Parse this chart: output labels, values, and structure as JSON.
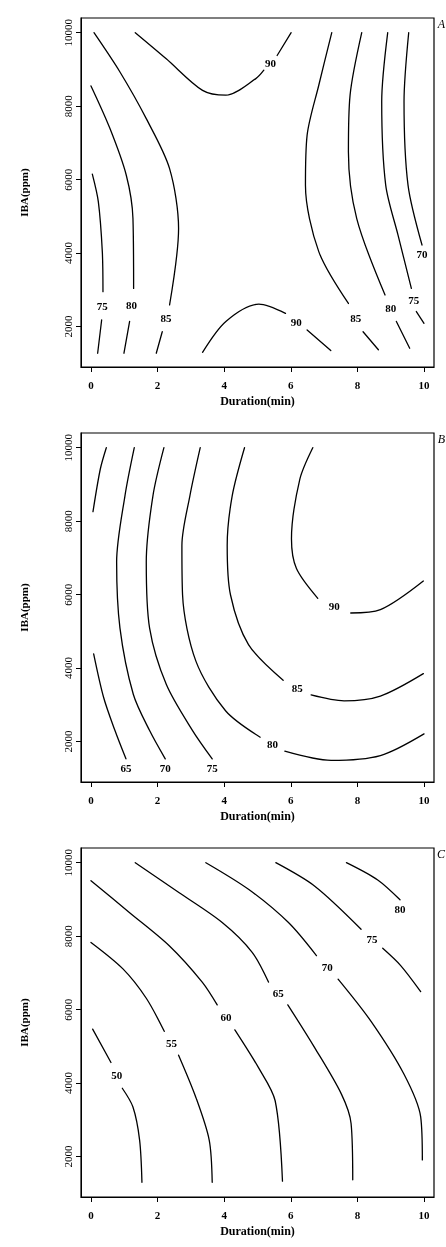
{
  "chart_data": [
    {
      "type": "line",
      "annotations": [
        "A"
      ],
      "xlabel": "Duration(min)",
      "ylabel": "IBA(ppm)",
      "xlim": [
        -0.3,
        10.3
      ],
      "ylim": [
        900,
        10400
      ],
      "xticks": [
        0,
        2,
        4,
        6,
        8,
        10
      ],
      "yticks": [
        2000,
        4000,
        6000,
        8000,
        10000
      ],
      "grid": false,
      "legend": false,
      "marker": "none",
      "line_style": "solid",
      "series": [
        {
          "name": "75",
          "color": "#000000",
          "x": [
            0.04,
            0.22,
            0.34,
            0.36,
            null,
            0.32,
            0.2
          ],
          "values": [
            6150,
            5400,
            4040,
            2950,
            null,
            2180,
            1275
          ]
        },
        {
          "name": "80",
          "color": "#000000",
          "x": [
            0,
            0.57,
            1.06,
            1.26,
            1.28,
            null,
            1.16,
            0.99
          ],
          "values": [
            8550,
            7390,
            6120,
            4945,
            3040,
            null,
            2140,
            1275
          ]
        },
        {
          "name": "85",
          "color": "#000000",
          "x": [
            0.09,
            0.87,
            1.66,
            2.36,
            2.63,
            2.36,
            null,
            2.14,
            1.96
          ],
          "values": [
            10000,
            8930,
            7660,
            6300,
            4670,
            2590,
            null,
            1860,
            1275
          ]
        },
        {
          "name": "90",
          "color": "#000000",
          "x": [
            1.33,
            2.26,
            3.35,
            4.05,
            4.95,
            5.19,
            null,
            5.59,
            6.01
          ],
          "values": [
            10000,
            9290,
            8430,
            8300,
            8750,
            8980,
            null,
            9380,
            10000
          ]
        },
        {
          "name": "90",
          "color": "#000000",
          "x": [
            3.35,
            4.05,
            5.04,
            5.84,
            null,
            6.49,
            7.2
          ],
          "values": [
            1300,
            2140,
            2610,
            2360,
            null,
            1910,
            1350
          ]
        },
        {
          "name": "85",
          "color": "#000000",
          "x": [
            7.23,
            6.84,
            6.49,
            6.44,
            6.84,
            7.73,
            null,
            8.17,
            8.63
          ],
          "values": [
            10000,
            8570,
            7210,
            5850,
            4040,
            2630,
            null,
            1860,
            1370
          ]
        },
        {
          "name": "80",
          "color": "#000000",
          "x": [
            8.13,
            7.78,
            7.73,
            7.98,
            8.83,
            null,
            9.17,
            9.57
          ],
          "values": [
            10000,
            8300,
            6760,
            4940,
            2860,
            null,
            2140,
            1410
          ]
        },
        {
          "name": "75",
          "color": "#000000",
          "x": [
            8.91,
            8.73,
            8.85,
            9.22,
            9.62,
            null,
            9.77,
            10
          ],
          "values": [
            10000,
            8120,
            5850,
            4490,
            3040,
            null,
            2410,
            2090
          ]
        },
        {
          "name": "70",
          "color": "#000000",
          "x": [
            9.54,
            9.4,
            9.52,
            9.94
          ],
          "values": [
            10000,
            8120,
            5850,
            4220
          ]
        }
      ]
    },
    {
      "type": "line",
      "annotations": [
        "B"
      ],
      "xlabel": "Duration(min)",
      "ylabel": "IBA(ppm)",
      "xlim": [
        -0.3,
        10.3
      ],
      "ylim": [
        900,
        10400
      ],
      "xticks": [
        0,
        2,
        4,
        6,
        8,
        10
      ],
      "yticks": [
        2000,
        4000,
        6000,
        8000,
        10000
      ],
      "grid": false,
      "legend": false,
      "marker": "none",
      "line_style": "solid",
      "series": [
        {
          "color": "#000000",
          "x": [
            0.06,
            0.28,
            0.46
          ],
          "values": [
            8260,
            9420,
            10000
          ]
        },
        {
          "name": "65",
          "color": "#000000",
          "x": [
            0.08,
            0.38,
            0.72,
            1.05
          ],
          "values": [
            4390,
            3200,
            2300,
            1530
          ]
        },
        {
          "name": "70",
          "color": "#000000",
          "x": [
            1.3,
            1.02,
            0.77,
            0.87,
            1.27,
            1.76,
            2.23
          ],
          "values": [
            10000,
            8690,
            6890,
            5090,
            3290,
            2300,
            1530
          ]
        },
        {
          "name": "75",
          "color": "#000000",
          "x": [
            2.19,
            1.86,
            1.66,
            1.76,
            2.26,
            3.05,
            3.64
          ],
          "values": [
            10000,
            8690,
            6890,
            5090,
            3560,
            2300,
            1530
          ]
        },
        {
          "name": "80",
          "color": "#000000",
          "x": [
            3.28,
            2.97,
            2.73,
            2.75,
            3.15,
            4.04,
            5.08,
            null,
            5.82,
            7.21,
            8.69,
            10
          ],
          "values": [
            10000,
            8690,
            7340,
            5990,
            4190,
            2840,
            2120,
            null,
            1740,
            1490,
            1620,
            2210
          ]
        },
        {
          "name": "85",
          "color": "#000000",
          "x": [
            4.61,
            4.24,
            4.09,
            4.19,
            4.73,
            5.77,
            null,
            6.61,
            7.6,
            8.69,
            9.98
          ],
          "values": [
            10000,
            8690,
            7340,
            5990,
            4640,
            3670,
            null,
            3270,
            3110,
            3240,
            3850
          ]
        },
        {
          "name": "90",
          "color": "#000000",
          "x": [
            6.66,
            6.27,
            6.02,
            6.17,
            6.81,
            null,
            7.8,
            8.69,
            9.98
          ],
          "values": [
            10000,
            9140,
            7520,
            6710,
            5900,
            null,
            5500,
            5590,
            6370
          ]
        }
      ]
    },
    {
      "type": "line",
      "annotations": [
        "C"
      ],
      "xlabel": "Duration(min)",
      "ylabel": "IBA(ppm)",
      "xlim": [
        -0.3,
        10.3
      ],
      "ylim": [
        900,
        10400
      ],
      "xticks": [
        0,
        2,
        4,
        6,
        8,
        10
      ],
      "yticks": [
        2000,
        4000,
        6000,
        8000,
        10000
      ],
      "grid": false,
      "legend": false,
      "marker": "none",
      "line_style": "solid",
      "series": [
        {
          "name": "50",
          "color": "#000000",
          "x": [
            0.05,
            0.6,
            null,
            0.94,
            1.26,
            1.46,
            1.53
          ],
          "values": [
            5470,
            4560,
            null,
            3860,
            3350,
            2450,
            1300
          ]
        },
        {
          "name": "55",
          "color": "#000000",
          "x": [
            0,
            0.96,
            1.66,
            2.2,
            null,
            2.63,
            3.15,
            3.55,
            3.64
          ],
          "values": [
            7830,
            7110,
            6310,
            5410,
            null,
            4760,
            3610,
            2450,
            1300
          ]
        },
        {
          "name": "60",
          "color": "#000000",
          "x": [
            0,
            1.16,
            2.35,
            3.34,
            3.79,
            null,
            4.32,
            5.03,
            5.53,
            5.75
          ],
          "values": [
            9510,
            8640,
            7740,
            6750,
            6130,
            null,
            5450,
            4420,
            3520,
            1330
          ]
        },
        {
          "name": "65",
          "color": "#000000",
          "x": [
            1.33,
            2.65,
            3.94,
            4.84,
            5.33,
            null,
            5.91,
            6.72,
            7.52,
            7.81,
            7.86
          ],
          "values": [
            10000,
            9180,
            8370,
            7560,
            6750,
            null,
            6130,
            4960,
            3700,
            2900,
            1370
          ]
        },
        {
          "name": "70",
          "color": "#000000",
          "x": [
            3.45,
            4.74,
            5.93,
            6.77,
            null,
            7.42,
            8.41,
            9.4,
            9.9,
            9.95
          ],
          "values": [
            10000,
            9270,
            8370,
            7470,
            null,
            6830,
            5680,
            4240,
            3080,
            1910
          ]
        },
        {
          "name": "75",
          "color": "#000000",
          "x": [
            5.55,
            6.72,
            8.11,
            null,
            8.76,
            9.3,
            9.9
          ],
          "values": [
            10000,
            9360,
            8190,
            null,
            7670,
            7200,
            6490
          ]
        },
        {
          "name": "80",
          "color": "#000000",
          "x": [
            7.67,
            8.61,
            9.28
          ],
          "values": [
            10000,
            9530,
            8990
          ]
        }
      ]
    }
  ]
}
